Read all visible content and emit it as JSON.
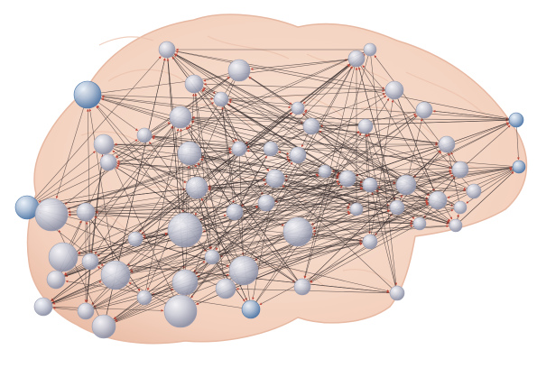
{
  "figure": {
    "colors": {
      "brain_fill": "#f6d7c6",
      "brain_stroke": "#e7b9a3",
      "node_fill": "#c9ccd8",
      "node_highlight": "#eef0f6",
      "node_edge_blue": "#5b86b5",
      "edge_color": "#3a3030",
      "arrow_color": "#c0463a",
      "background": "#ffffff"
    },
    "icons": {
      "node": "sphere-node-icon",
      "arrowhead": "arrowhead-icon"
    }
  }
}
